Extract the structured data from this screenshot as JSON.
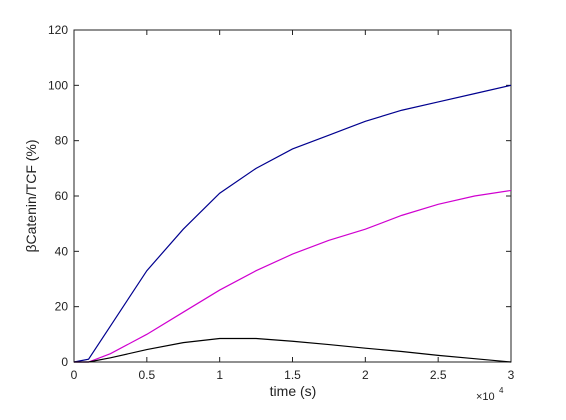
{
  "chart_data": {
    "type": "line",
    "xlabel": "time (s)",
    "ylabel": "βCatenin/TCF (%)",
    "x_multiplier": "×10",
    "x_multiplier_exponent": "4",
    "x": [
      0,
      0.1,
      0.25,
      0.5,
      0.75,
      1,
      1.25,
      1.5,
      1.75,
      2,
      2.25,
      2.5,
      2.75,
      3
    ],
    "series": [
      {
        "color": "#00008f",
        "values": [
          0,
          1,
          13,
          33,
          48,
          61,
          70,
          77,
          82,
          87,
          91,
          94,
          97,
          100
        ]
      },
      {
        "color": "#d000d0",
        "values": [
          0,
          0,
          3,
          10,
          18,
          26,
          33,
          39,
          44,
          48,
          53,
          57,
          60,
          62
        ]
      },
      {
        "color": "#000000",
        "values": [
          0,
          0,
          1.5,
          4.5,
          7,
          8.5,
          8.5,
          7.5,
          6.3,
          5,
          3.8,
          2.4,
          1.2,
          0
        ]
      }
    ],
    "xlim": [
      0,
      3
    ],
    "xticks": [
      0,
      0.5,
      1,
      1.5,
      2,
      2.5,
      3
    ],
    "ylim": [
      0,
      120
    ],
    "yticks": [
      0,
      20,
      40,
      60,
      80,
      100,
      120
    ]
  }
}
